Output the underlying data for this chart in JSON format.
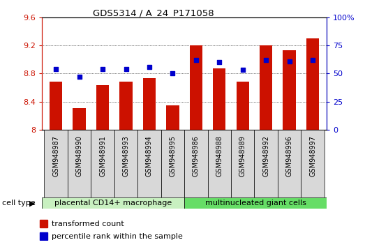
{
  "title": "GDS5314 / A_24_P171058",
  "samples": [
    "GSM948987",
    "GSM948990",
    "GSM948991",
    "GSM948993",
    "GSM948994",
    "GSM948995",
    "GSM948986",
    "GSM948988",
    "GSM948989",
    "GSM948992",
    "GSM948996",
    "GSM948997"
  ],
  "transformed_count": [
    8.68,
    8.31,
    8.63,
    8.68,
    8.73,
    8.35,
    9.2,
    8.87,
    8.68,
    9.2,
    9.13,
    9.3
  ],
  "percentile_rank": [
    54,
    47,
    54,
    54,
    56,
    50,
    62,
    60,
    53,
    62,
    61,
    62
  ],
  "groups": [
    {
      "label": "placental CD14+ macrophage",
      "start": 0,
      "end": 6,
      "color": "#c8f0c0"
    },
    {
      "label": "multinucleated giant cells",
      "start": 6,
      "end": 12,
      "color": "#66dd66"
    }
  ],
  "ylim_left": [
    8.0,
    9.6
  ],
  "ylim_right": [
    0,
    100
  ],
  "yticks_left": [
    8.0,
    8.4,
    8.8,
    9.2,
    9.6
  ],
  "ytick_labels_left": [
    "8",
    "8.4",
    "8.8",
    "9.2",
    "9.6"
  ],
  "yticks_right": [
    0,
    25,
    50,
    75,
    100
  ],
  "ytick_labels_right": [
    "0",
    "25",
    "50",
    "75",
    "100%"
  ],
  "bar_color": "#cc1100",
  "dot_color": "#0000cc",
  "bar_width": 0.55,
  "left_axis_color": "#cc1100",
  "right_axis_color": "#0000cc",
  "cell_type_label": "cell type",
  "legend_items": [
    {
      "label": "transformed count",
      "color": "#cc1100"
    },
    {
      "label": "percentile rank within the sample",
      "color": "#0000cc"
    }
  ],
  "sample_box_color": "#d8d8d8",
  "group1_color": "#c8f0c0",
  "group2_color": "#66dd66"
}
